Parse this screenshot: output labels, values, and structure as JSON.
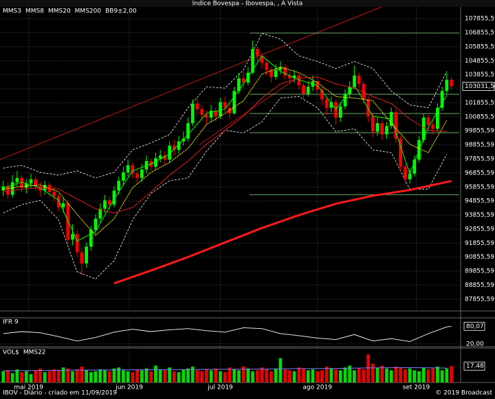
{
  "chart_data": [
    {
      "type": "candlestick",
      "title": "Índice Bovespa - Ibovespa, , A Vista",
      "xlim": [
        -0.7,
        99
      ],
      "ylim": [
        87018,
        108693
      ],
      "xticks": [
        {
          "value": 5.5,
          "label": "mai 2019"
        },
        {
          "value": 27.3,
          "label": "jun 2019"
        },
        {
          "value": 47,
          "label": "jul 2019"
        },
        {
          "value": 68,
          "label": "ago 2019"
        },
        {
          "value": 89.4,
          "label": "set 2019"
        }
      ],
      "yticks": [
        {
          "value": 87855.59,
          "label": "87855,59"
        },
        {
          "value": 88855.59,
          "label": "88855,59"
        },
        {
          "value": 89855.59,
          "label": "89855,59"
        },
        {
          "value": 90855.59,
          "label": "90855,59"
        },
        {
          "value": 91855.59,
          "label": "91855,59"
        },
        {
          "value": 92855.59,
          "label": "92855,59"
        },
        {
          "value": 93855.59,
          "label": "93855,59"
        },
        {
          "value": 94855.59,
          "label": "94855,59"
        },
        {
          "value": 95855.59,
          "label": "95855,59"
        },
        {
          "value": 96855.59,
          "label": "96855,59"
        },
        {
          "value": 97855.59,
          "label": "97855,59"
        },
        {
          "value": 98855.59,
          "label": "98855,59"
        },
        {
          "value": 99855.59,
          "label": "99855,59"
        },
        {
          "value": 100855.59,
          "label": "100855,59"
        },
        {
          "value": 101855.59,
          "label": "101855,59"
        },
        {
          "value": 102855.59,
          "label": "102855,59"
        },
        {
          "value": 103855.59,
          "label": "103855,59"
        },
        {
          "value": 104855.59,
          "label": "104855,59"
        },
        {
          "value": 105855.59,
          "label": "105855,59"
        },
        {
          "value": 106855.59,
          "label": "106855,59"
        },
        {
          "value": 107855.59,
          "label": "107855,59"
        }
      ],
      "grid": true,
      "candles": {
        "up_color": "#00ff00",
        "down_color": "#ff0000",
        "last_label": "103031,50",
        "open": [
          95600,
          95900,
          95300,
          96200,
          96500,
          95800,
          96100,
          96400,
          95900,
          95600,
          96000,
          95500,
          95200,
          94400,
          94700,
          92100,
          92500,
          91200,
          90400,
          91600,
          92800,
          93600,
          94300,
          94900,
          94600,
          95600,
          96300,
          96900,
          97400,
          96800,
          96500,
          97100,
          97700,
          97300,
          97900,
          98100,
          97800,
          98800,
          98500,
          99100,
          99300,
          100400,
          101800,
          101400,
          101000,
          100800,
          101300,
          100900,
          101900,
          101500,
          101100,
          102700,
          103600,
          103300,
          104000,
          105700,
          105200,
          104700,
          104200,
          103700,
          104200,
          104400,
          103800,
          103600,
          103800,
          103100,
          102500,
          103000,
          103400,
          102800,
          102100,
          101500,
          101900,
          100800,
          101600,
          102500,
          103000,
          103800,
          103200,
          102100,
          100900,
          99800,
          100400,
          99600,
          100200,
          101200,
          99300,
          97300,
          96400,
          96800,
          97800,
          99200,
          100800,
          100300,
          100000,
          101500,
          102700,
          103500
        ],
        "high": [
          96300,
          96200,
          96700,
          97000,
          96700,
          96400,
          96800,
          96600,
          96200,
          96300,
          96200,
          95900,
          95400,
          95100,
          94900,
          93200,
          92800,
          91500,
          91900,
          93100,
          93900,
          94700,
          95300,
          95200,
          95900,
          96600,
          97300,
          97800,
          97600,
          97100,
          97500,
          98100,
          97900,
          98300,
          98500,
          98400,
          99100,
          99200,
          99500,
          99800,
          100800,
          102100,
          102200,
          101700,
          101300,
          101700,
          101500,
          102200,
          102300,
          101800,
          103000,
          104000,
          104100,
          104400,
          106300,
          105900,
          105400,
          104900,
          104400,
          104600,
          104800,
          104600,
          104100,
          104200,
          104000,
          103300,
          103400,
          103800,
          103600,
          103000,
          102300,
          102300,
          102100,
          101900,
          102800,
          103400,
          104500,
          104000,
          103400,
          102300,
          101200,
          100800,
          100600,
          100500,
          101500,
          101400,
          99500,
          97500,
          97200,
          98100,
          99500,
          101100,
          101000,
          100600,
          101800,
          103000,
          104000,
          103700
        ],
        "low": [
          95200,
          95000,
          95100,
          95900,
          95500,
          95400,
          95800,
          95600,
          95200,
          95300,
          95100,
          94800,
          94100,
          94000,
          91800,
          91700,
          90900,
          89600,
          90100,
          91300,
          92500,
          93300,
          94000,
          94200,
          94400,
          95300,
          96000,
          96600,
          96500,
          96100,
          96200,
          96800,
          97000,
          97100,
          97600,
          97400,
          97600,
          98100,
          98200,
          98800,
          99100,
          100200,
          101000,
          100600,
          100300,
          100500,
          100500,
          100700,
          101200,
          100700,
          101000,
          102500,
          102900,
          103100,
          103900,
          104800,
          104300,
          103800,
          103300,
          103500,
          103900,
          103500,
          103200,
          103300,
          102800,
          102100,
          102300,
          102700,
          102400,
          101700,
          101000,
          101200,
          100300,
          100500,
          101400,
          102200,
          102800,
          102900,
          101800,
          100500,
          99400,
          99500,
          99200,
          99300,
          100000,
          99000,
          97000,
          96000,
          96100,
          96600,
          97600,
          99000,
          99900,
          99600,
          99800,
          101300,
          102500,
          102800
        ],
        "close": [
          95900,
          95300,
          96200,
          96500,
          95800,
          96100,
          96400,
          95900,
          95600,
          96000,
          95500,
          95200,
          94400,
          94700,
          92100,
          92500,
          91200,
          90400,
          91600,
          92800,
          93600,
          94300,
          94900,
          94600,
          95600,
          96300,
          96900,
          97400,
          96800,
          96500,
          97100,
          97700,
          97300,
          97900,
          98100,
          97800,
          98800,
          98500,
          99100,
          99300,
          100400,
          101800,
          101400,
          101000,
          100800,
          101300,
          100900,
          101900,
          101500,
          101100,
          102700,
          103600,
          103300,
          104000,
          105700,
          105200,
          104700,
          104200,
          103700,
          104200,
          104400,
          103800,
          103600,
          103800,
          103100,
          102500,
          103000,
          103400,
          102800,
          102100,
          101500,
          101900,
          100800,
          101600,
          102500,
          103000,
          103800,
          103200,
          102100,
          100900,
          99800,
          100400,
          99600,
          100200,
          101200,
          99300,
          97300,
          96400,
          96800,
          97800,
          99200,
          100800,
          100300,
          100000,
          101500,
          102700,
          103500,
          103031.5
        ]
      },
      "lines": [
        {
          "name": "MMS3",
          "color": "#00ff00",
          "width": 1,
          "x": [
            0,
            4,
            8,
            12,
            16,
            20,
            24,
            28,
            32,
            36,
            40,
            44,
            48,
            52,
            56,
            60,
            64,
            68,
            72,
            76,
            80,
            84,
            88,
            92,
            96
          ],
          "values": [
            95800,
            96200,
            95800,
            94900,
            92000,
            92700,
            95000,
            97000,
            97500,
            98200,
            99600,
            101100,
            101400,
            103200,
            105200,
            104100,
            103500,
            103100,
            101400,
            103100,
            100900,
            100700,
            96800,
            100100,
            102400
          ]
        },
        {
          "name": "MMS8",
          "color": "#ffff00",
          "width": 1,
          "x": [
            0,
            4,
            8,
            12,
            16,
            20,
            24,
            28,
            32,
            36,
            40,
            44,
            48,
            52,
            56,
            60,
            64,
            68,
            72,
            76,
            80,
            84,
            88,
            92,
            96
          ],
          "values": [
            95700,
            95900,
            96000,
            95500,
            93900,
            92400,
            93600,
            95800,
            96900,
            97600,
            98600,
            100300,
            101100,
            102000,
            103900,
            104400,
            104000,
            103300,
            102300,
            102200,
            102000,
            100400,
            98900,
            98300,
            100600
          ]
        },
        {
          "name": "MMS20",
          "color": "#e02020",
          "width": 1,
          "x": [
            0,
            4,
            8,
            12,
            16,
            20,
            24,
            28,
            32,
            36,
            40,
            44,
            48,
            52,
            56,
            60,
            64,
            68,
            72,
            76,
            80,
            84,
            88,
            92,
            96
          ],
          "values": [
            95500,
            95700,
            95800,
            95700,
            95000,
            94300,
            94000,
            94400,
            95500,
            96700,
            97700,
            98900,
            99900,
            100900,
            102200,
            103200,
            103600,
            103700,
            103200,
            102900,
            102300,
            101800,
            100700,
            99900,
            99800
          ]
        },
        {
          "name": "MMS200",
          "color": "#ff1a1a",
          "width": 3,
          "x": [
            24,
            32,
            40,
            48,
            56,
            64,
            72,
            80,
            88,
            97
          ],
          "values": [
            88990,
            89900,
            90860,
            91900,
            92930,
            93850,
            94660,
            95230,
            95640,
            96280
          ]
        }
      ],
      "bands": [
        {
          "name": "BB9±2,00",
          "color": "#ffffff",
          "x": [
            0,
            4,
            8,
            12,
            16,
            20,
            24,
            28,
            32,
            36,
            40,
            44,
            48,
            52,
            56,
            60,
            64,
            68,
            72,
            76,
            80,
            84,
            88,
            92,
            96
          ],
          "upper": [
            97200,
            97400,
            96900,
            96700,
            97000,
            96500,
            96900,
            98500,
            99000,
            99600,
            101500,
            103000,
            102900,
            104200,
            106800,
            106400,
            105200,
            104800,
            104300,
            104800,
            104300,
            102700,
            101700,
            101500,
            104100
          ],
          "lower": [
            94000,
            94600,
            94900,
            93500,
            89800,
            89300,
            90600,
            93500,
            95400,
            96300,
            96500,
            98400,
            99900,
            99700,
            100500,
            102200,
            102300,
            101500,
            99800,
            100000,
            98500,
            98300,
            95700,
            95700,
            98200
          ]
        }
      ]
    },
    {
      "type": "line",
      "title": "IFR 9",
      "ylim": [
        12.8,
        106.5
      ],
      "yticks": [
        {
          "value": 20,
          "label": "20,00"
        }
      ],
      "series": [
        {
          "color": "#ffffff",
          "last_label": "80,07",
          "x": [
            0,
            4,
            8,
            12,
            16,
            20,
            24,
            28,
            32,
            36,
            40,
            44,
            48,
            52,
            56,
            60,
            64,
            68,
            72,
            76,
            80,
            84,
            88,
            92,
            96,
            97
          ],
          "values": [
            55,
            62,
            58,
            45,
            30,
            42,
            60,
            70,
            62,
            68,
            72,
            65,
            60,
            75,
            72,
            55,
            48,
            40,
            35,
            52,
            30,
            38,
            28,
            55,
            78,
            80.07
          ]
        }
      ]
    },
    {
      "type": "bar",
      "title": "VOL$",
      "ylim": [
        0,
        36
      ],
      "up_color": "#00dd00",
      "down_color": "#ee0000",
      "last_label": "17,48",
      "values": [
        12,
        13,
        10,
        14,
        11,
        12,
        9,
        13,
        15,
        11,
        12,
        14,
        13,
        16,
        15,
        12,
        14,
        17,
        13,
        11,
        12,
        14,
        13,
        12,
        15,
        16,
        13,
        12,
        11,
        14,
        13,
        15,
        12,
        18,
        14,
        13,
        16,
        12,
        11,
        14,
        15,
        17,
        13,
        12,
        14,
        13,
        15,
        12,
        11,
        16,
        14,
        13,
        17,
        15,
        12,
        13,
        16,
        14,
        12,
        15,
        26,
        14,
        13,
        12,
        16,
        15,
        13,
        14,
        12,
        13,
        17,
        15,
        14,
        13,
        16,
        18,
        13,
        15,
        14,
        30,
        20,
        16,
        18,
        15,
        13,
        17,
        16,
        14,
        15,
        13,
        12,
        16,
        14,
        15,
        17,
        13,
        15,
        17.48
      ],
      "lines": [
        {
          "name": "MMS22",
          "color": "#8080ff",
          "x": [
            0,
            8,
            16,
            24,
            32,
            40,
            48,
            56,
            64,
            72,
            80,
            88,
            96
          ],
          "values": [
            12.5,
            12.8,
            13.2,
            13.4,
            13.6,
            13.8,
            14.1,
            14.3,
            14.8,
            15,
            15.6,
            15.9,
            15.4
          ]
        }
      ]
    }
  ],
  "footer": {
    "left": "IBOV - Diário - criado em 11/09/2019",
    "right": "© 2019 Broadcast"
  }
}
